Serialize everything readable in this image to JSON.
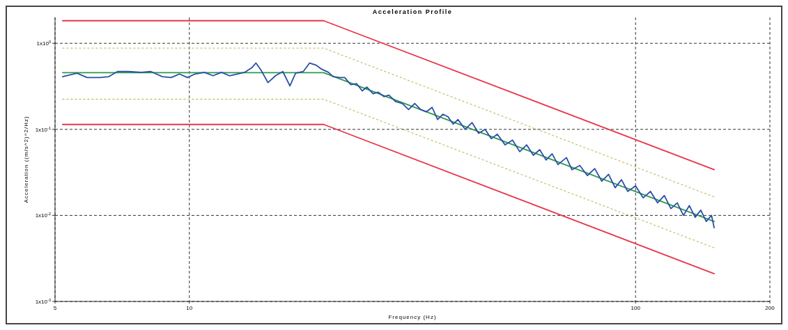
{
  "chart_data": {
    "type": "line",
    "title": "Acceleration Profile",
    "xlabel": "Frequency (Hz)",
    "ylabel": "Acceleration ((m/s^2)^2/Hz)",
    "log": "xy",
    "grid": true,
    "xlim": [
      5,
      200
    ],
    "xticks": [
      5,
      10,
      100,
      200
    ],
    "ylim": [
      0.001,
      2
    ],
    "yticks": [
      {
        "value": 0.001,
        "label": "1x10$^{-3}$"
      },
      {
        "value": 0.01,
        "label": "1x10$^{-2}$"
      },
      {
        "value": 0.1,
        "label": "1x10$^{-1}$"
      },
      {
        "value": 1,
        "label": "1x10$^{0}$"
      }
    ],
    "series": [
      {
        "color": "#e8344a",
        "line_style": "solid",
        "x": [
          5.2,
          20,
          150
        ],
        "values": [
          1.83,
          1.83,
          0.034
        ]
      },
      {
        "color": "#e8344a",
        "line_style": "solid",
        "x": [
          5.2,
          20,
          150
        ],
        "values": [
          0.114,
          0.114,
          0.0021
        ]
      },
      {
        "color": "#c9c070",
        "line_style": "dotted",
        "x": [
          5.2,
          20,
          150
        ],
        "values": [
          0.88,
          0.88,
          0.0164
        ]
      },
      {
        "color": "#c9c070",
        "line_style": "dotted",
        "x": [
          5.2,
          20,
          150
        ],
        "values": [
          0.224,
          0.224,
          0.0042
        ]
      },
      {
        "color": "#2e9a4a",
        "line_style": "solid",
        "x": [
          5.2,
          20,
          150
        ],
        "values": [
          0.456,
          0.456,
          0.0085
        ]
      },
      {
        "color": "#2a4fa8",
        "line_style": "solid",
        "x": [
          5.2,
          5.6,
          5.9,
          6.3,
          6.6,
          6.9,
          7.3,
          7.8,
          8.2,
          8.7,
          9.1,
          9.5,
          9.9,
          10.3,
          10.8,
          11.3,
          11.8,
          12.3,
          12.8,
          13.3,
          13.8,
          14.1,
          14.5,
          15,
          15.6,
          16.2,
          16.8,
          17.3,
          18,
          18.6,
          19.2,
          19.8,
          20.5,
          21,
          21.7,
          22.3,
          23,
          23.7,
          24.4,
          25,
          25.8,
          26.5,
          27.3,
          28,
          29,
          30,
          31,
          32,
          33,
          34,
          35,
          36,
          37,
          38,
          39,
          40,
          41.5,
          43,
          44.5,
          46,
          47.5,
          49,
          51,
          53,
          55,
          57,
          59,
          61,
          63,
          65,
          67,
          70,
          72,
          75,
          78,
          81,
          84,
          87,
          90,
          93,
          96,
          100,
          104,
          108,
          112,
          116,
          120,
          124,
          128,
          132,
          136,
          140,
          144,
          148,
          150
        ],
        "values": [
          0.41,
          0.45,
          0.4,
          0.4,
          0.41,
          0.47,
          0.47,
          0.46,
          0.47,
          0.41,
          0.4,
          0.44,
          0.4,
          0.44,
          0.46,
          0.42,
          0.46,
          0.42,
          0.44,
          0.46,
          0.52,
          0.59,
          0.48,
          0.35,
          0.42,
          0.47,
          0.32,
          0.45,
          0.47,
          0.59,
          0.56,
          0.5,
          0.46,
          0.41,
          0.4,
          0.4,
          0.33,
          0.34,
          0.28,
          0.31,
          0.26,
          0.27,
          0.24,
          0.25,
          0.21,
          0.2,
          0.17,
          0.2,
          0.17,
          0.16,
          0.18,
          0.13,
          0.15,
          0.14,
          0.115,
          0.13,
          0.1,
          0.12,
          0.09,
          0.1,
          0.078,
          0.088,
          0.066,
          0.075,
          0.055,
          0.066,
          0.05,
          0.058,
          0.044,
          0.052,
          0.039,
          0.047,
          0.034,
          0.038,
          0.029,
          0.035,
          0.025,
          0.03,
          0.021,
          0.026,
          0.019,
          0.022,
          0.016,
          0.019,
          0.014,
          0.017,
          0.012,
          0.014,
          0.01,
          0.013,
          0.0095,
          0.0115,
          0.0085,
          0.01,
          0.0072
        ]
      }
    ]
  }
}
